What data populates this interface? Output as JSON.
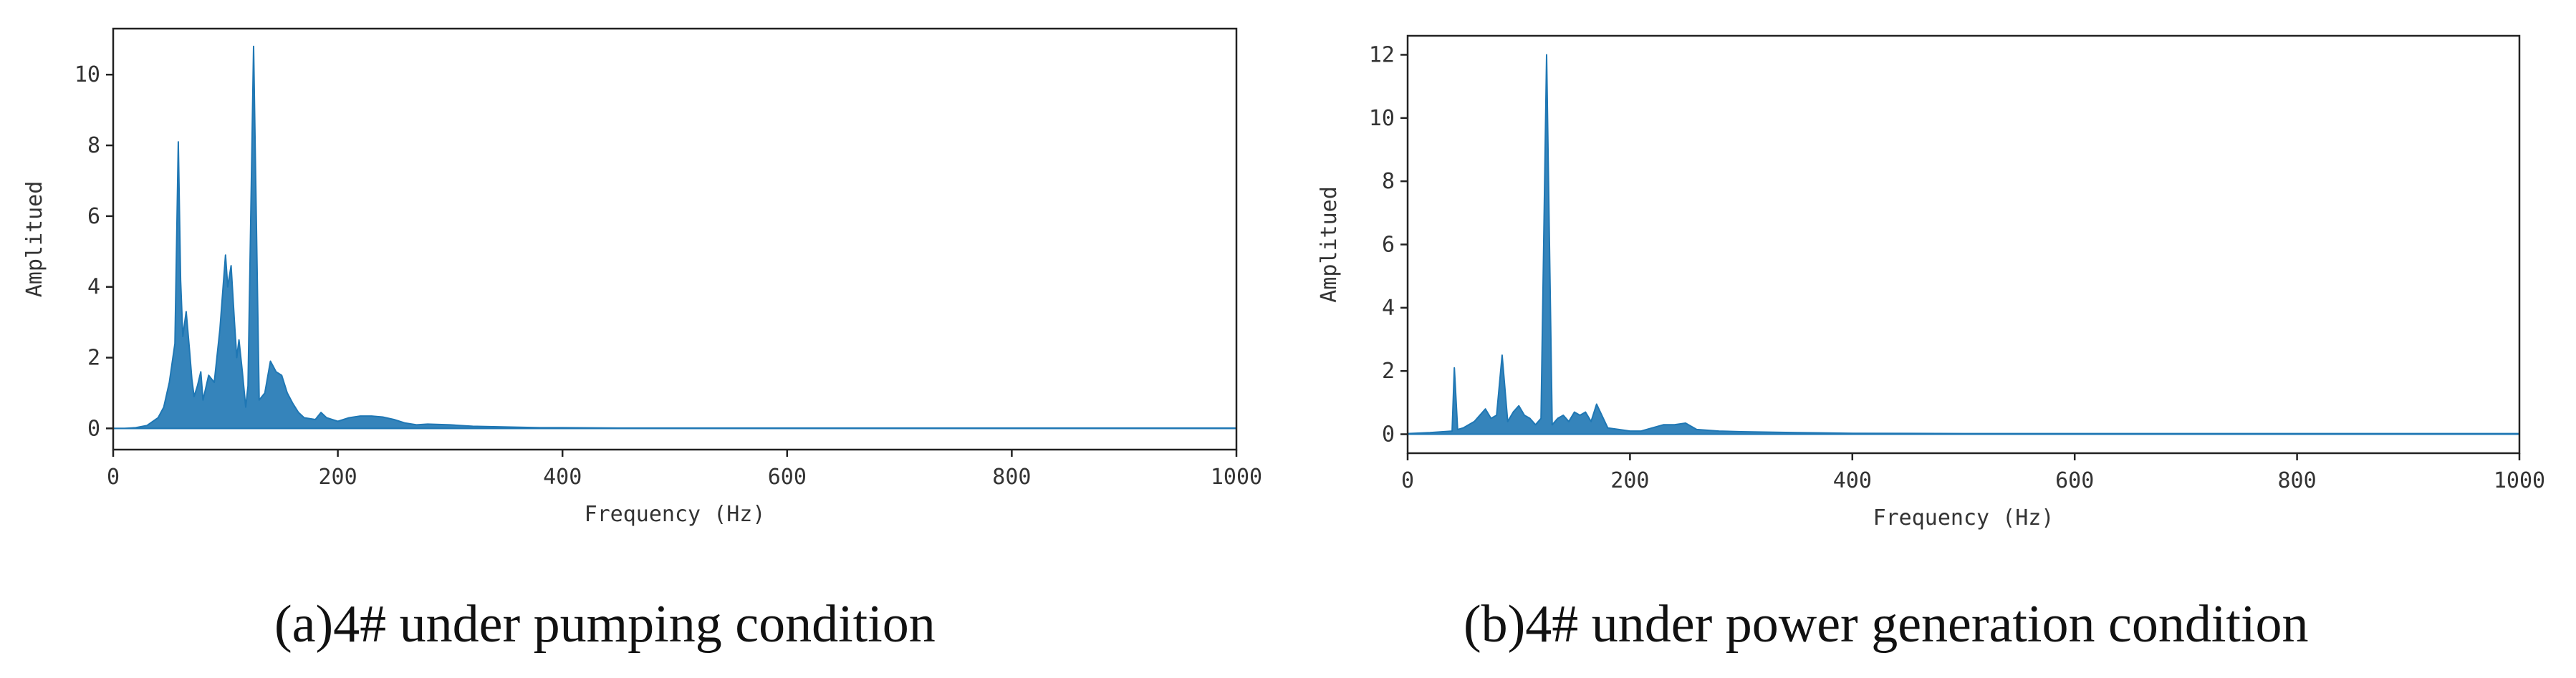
{
  "colors": {
    "series": "#1f77b4",
    "axis": "#222222",
    "text": "#333333"
  },
  "chart_data": [
    {
      "type": "area",
      "xlabel": "Frequency (Hz)",
      "ylabel": "Amplitued",
      "xlim": [
        0,
        1000
      ],
      "ylim": [
        -0.6,
        11.3
      ],
      "xticks": [
        0,
        200,
        400,
        600,
        800,
        1000
      ],
      "yticks": [
        0,
        2,
        4,
        6,
        8,
        10
      ],
      "grid": false,
      "caption": "(a)4# under pumping condition",
      "series": [
        {
          "x": [
            0,
            10,
            20,
            30,
            40,
            45,
            50,
            55,
            58,
            60,
            62,
            65,
            68,
            70,
            72,
            75,
            78,
            80,
            85,
            90,
            95,
            100,
            102,
            105,
            108,
            110,
            112,
            115,
            118,
            120,
            125,
            130,
            135,
            140,
            145,
            150,
            155,
            160,
            165,
            170,
            180,
            185,
            190,
            200,
            210,
            220,
            230,
            240,
            250,
            260,
            270,
            280,
            300,
            320,
            350,
            380,
            400,
            450,
            500,
            600,
            700,
            800,
            900,
            1000
          ],
          "y": [
            0,
            0,
            0.02,
            0.08,
            0.3,
            0.6,
            1.3,
            2.4,
            8.1,
            4.2,
            2.6,
            3.3,
            2.2,
            1.4,
            0.9,
            1.2,
            1.6,
            0.8,
            1.5,
            1.3,
            2.8,
            4.9,
            4.0,
            4.6,
            3.0,
            2.0,
            2.5,
            1.6,
            0.6,
            1.2,
            10.8,
            0.8,
            1.0,
            1.9,
            1.6,
            1.5,
            1.0,
            0.7,
            0.45,
            0.3,
            0.25,
            0.45,
            0.3,
            0.2,
            0.3,
            0.35,
            0.35,
            0.32,
            0.25,
            0.15,
            0.1,
            0.12,
            0.1,
            0.06,
            0.04,
            0.02,
            0.02,
            0.01,
            0.01,
            0.01,
            0.01,
            0.01,
            0.01,
            0.01
          ]
        }
      ]
    },
    {
      "type": "area",
      "xlabel": "Frequency (Hz)",
      "ylabel": "Amplitued",
      "xlim": [
        0,
        1000
      ],
      "ylim": [
        -0.6,
        12.6
      ],
      "xticks": [
        0,
        200,
        400,
        600,
        800,
        1000
      ],
      "yticks": [
        0,
        2,
        4,
        6,
        8,
        10,
        12
      ],
      "grid": false,
      "caption": "(b)4# under power generation condition",
      "series": [
        {
          "x": [
            0,
            20,
            40,
            42,
            45,
            50,
            60,
            70,
            75,
            80,
            85,
            90,
            95,
            100,
            105,
            110,
            115,
            120,
            125,
            130,
            135,
            140,
            145,
            150,
            155,
            160,
            165,
            170,
            180,
            190,
            200,
            210,
            220,
            230,
            240,
            250,
            260,
            280,
            300,
            350,
            400,
            500,
            600,
            800,
            1000
          ],
          "y": [
            0.02,
            0.05,
            0.1,
            2.1,
            0.15,
            0.2,
            0.4,
            0.8,
            0.5,
            0.6,
            2.5,
            0.4,
            0.7,
            0.9,
            0.6,
            0.5,
            0.3,
            0.5,
            12.0,
            0.3,
            0.5,
            0.6,
            0.4,
            0.7,
            0.6,
            0.7,
            0.4,
            0.95,
            0.2,
            0.15,
            0.1,
            0.1,
            0.2,
            0.3,
            0.3,
            0.35,
            0.15,
            0.1,
            0.08,
            0.05,
            0.03,
            0.02,
            0.02,
            0.02,
            0.02
          ]
        }
      ]
    }
  ]
}
